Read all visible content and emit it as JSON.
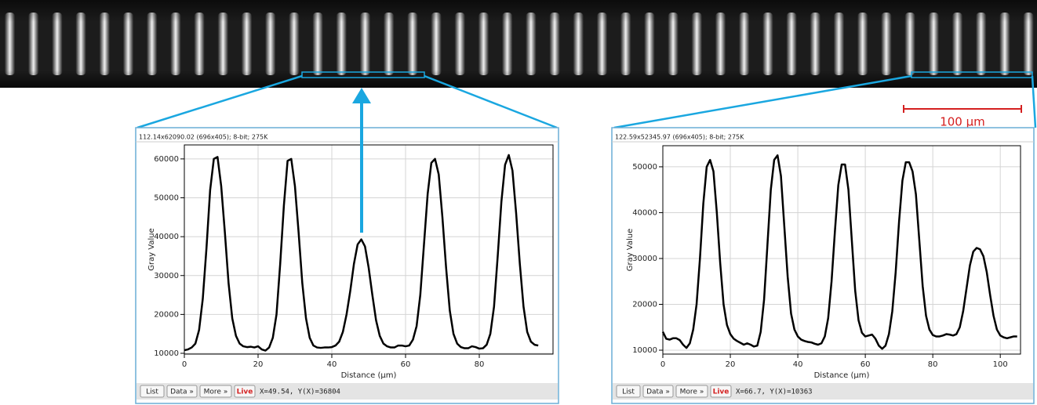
{
  "chart_data": [
    {
      "type": "line",
      "xlabel": "Distance (µm)",
      "ylabel": "Gray Value",
      "color": "#000000",
      "grid": true,
      "xlim": [
        0,
        100
      ],
      "ylim": [
        9800,
        63600
      ],
      "xticks": [
        0,
        20,
        40,
        60,
        80
      ],
      "yticks": [
        10000,
        20000,
        30000,
        40000,
        50000,
        60000
      ],
      "x": [
        0,
        1,
        2,
        3,
        4,
        5,
        6,
        7,
        8,
        9,
        10,
        11,
        12,
        13,
        14,
        15,
        16,
        17,
        18,
        19,
        20,
        21,
        22,
        23,
        24,
        25,
        26,
        27,
        28,
        29,
        30,
        31,
        32,
        33,
        34,
        35,
        36,
        37,
        38,
        39,
        40,
        41,
        42,
        43,
        44,
        45,
        46,
        47,
        48,
        49,
        50,
        51,
        52,
        53,
        54,
        55,
        56,
        57,
        58,
        59,
        60,
        61,
        62,
        63,
        64,
        65,
        66,
        67,
        68,
        69,
        70,
        71,
        72,
        73,
        74,
        75,
        76,
        77,
        78,
        79,
        80,
        81,
        82,
        83,
        84,
        85,
        86,
        87,
        88,
        89,
        90,
        91,
        92,
        93,
        94,
        95,
        96
      ],
      "values": [
        10800,
        11000,
        11500,
        12500,
        16000,
        24000,
        37000,
        52000,
        60000,
        60500,
        53000,
        41000,
        28000,
        19000,
        14500,
        12500,
        11800,
        11600,
        11700,
        11500,
        11800,
        11000,
        10700,
        11500,
        14000,
        20000,
        33000,
        48000,
        59500,
        60000,
        53000,
        41000,
        28000,
        19000,
        14000,
        12000,
        11500,
        11400,
        11500,
        11500,
        11600,
        12000,
        13000,
        15500,
        20000,
        26000,
        33000,
        38000,
        39300,
        37500,
        32000,
        25000,
        18500,
        14500,
        12500,
        11800,
        11500,
        11500,
        12000,
        12000,
        11800,
        12000,
        13500,
        17000,
        25000,
        38000,
        51000,
        59000,
        60000,
        56000,
        45000,
        32000,
        21000,
        15000,
        12500,
        11600,
        11300,
        11300,
        11800,
        11600,
        11200,
        11300,
        12200,
        15000,
        22000,
        35000,
        49000,
        58500,
        61000,
        57000,
        46000,
        33000,
        22000,
        15500,
        13000,
        12200,
        12000
      ]
    },
    {
      "type": "line",
      "xlabel": "Distance (µm)",
      "ylabel": "Gray Value",
      "color": "#000000",
      "grid": true,
      "xlim": [
        0,
        106
      ],
      "ylim": [
        9150,
        54600
      ],
      "xticks": [
        0,
        20,
        40,
        60,
        80,
        100
      ],
      "yticks": [
        10000,
        20000,
        30000,
        40000,
        50000
      ],
      "x": [
        0,
        1,
        2,
        3,
        4,
        5,
        6,
        7,
        8,
        9,
        10,
        11,
        12,
        13,
        14,
        15,
        16,
        17,
        18,
        19,
        20,
        21,
        22,
        23,
        24,
        25,
        26,
        27,
        28,
        29,
        30,
        31,
        32,
        33,
        34,
        35,
        36,
        37,
        38,
        39,
        40,
        41,
        42,
        43,
        44,
        45,
        46,
        47,
        48,
        49,
        50,
        51,
        52,
        53,
        54,
        55,
        56,
        57,
        58,
        59,
        60,
        61,
        62,
        63,
        64,
        65,
        66,
        67,
        68,
        69,
        70,
        71,
        72,
        73,
        74,
        75,
        76,
        77,
        78,
        79,
        80,
        81,
        82,
        83,
        84,
        85,
        86,
        87,
        88,
        89,
        90,
        91,
        92,
        93,
        94,
        95,
        96,
        97,
        98,
        99,
        100,
        101,
        102,
        103,
        104,
        105
      ],
      "values": [
        14000,
        12500,
        12300,
        12600,
        12600,
        12200,
        11200,
        10500,
        11500,
        14500,
        20000,
        30000,
        42000,
        50000,
        51500,
        49000,
        40000,
        29000,
        20000,
        15500,
        13500,
        12500,
        12000,
        11600,
        11200,
        11500,
        11200,
        10800,
        11000,
        14000,
        21000,
        33000,
        45000,
        51500,
        52500,
        48000,
        37000,
        26000,
        18000,
        14500,
        13000,
        12300,
        12000,
        11800,
        11700,
        11400,
        11200,
        11500,
        13000,
        17000,
        25000,
        36000,
        46000,
        50500,
        50500,
        45000,
        34000,
        23000,
        16500,
        13800,
        13000,
        13200,
        13400,
        12500,
        11000,
        10300,
        11000,
        13500,
        18500,
        27000,
        38000,
        47000,
        51000,
        51000,
        49000,
        44000,
        34000,
        24000,
        17500,
        14500,
        13300,
        13000,
        13000,
        13200,
        13500,
        13400,
        13200,
        13500,
        15000,
        18500,
        23500,
        28500,
        31500,
        32300,
        32000,
        30500,
        27000,
        22000,
        17500,
        14500,
        13200,
        12800,
        12600,
        12800,
        13000,
        13000
      ]
    }
  ],
  "windows": [
    {
      "header": "112.14x62090.02  (696x405); 8-bit; 275K",
      "buttons": [
        "List",
        "Data »",
        "More »",
        "Live"
      ],
      "status": "X=49.54, Y(X)=36804"
    },
    {
      "header": "122.59x52345.97  (696x405); 8-bit; 275K",
      "buttons": [
        "List",
        "Data »",
        "More »",
        "Live"
      ],
      "status": "X=66.7, Y(X)=10363"
    }
  ],
  "scale_bar": {
    "label": "100 µm"
  }
}
